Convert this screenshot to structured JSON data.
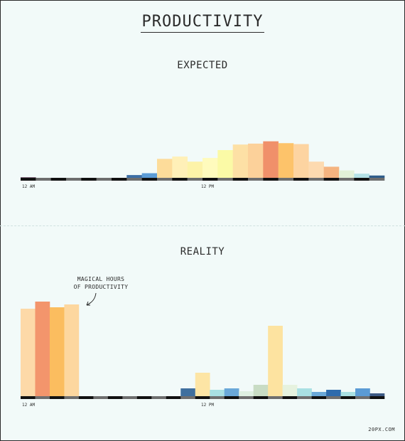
{
  "title": "PRODUCTIVITY",
  "credit": "20PX.COM",
  "chart_data": [
    {
      "type": "bar",
      "title": "EXPECTED",
      "xlabel": "",
      "ylabel": "",
      "x_tick_labels": [
        "12 AM",
        "12 PM"
      ],
      "ylim": [
        0,
        80
      ],
      "values": [
        1,
        0,
        0,
        0,
        0,
        0,
        0,
        6,
        10,
        41,
        46,
        35,
        43,
        60,
        72,
        74,
        79,
        75,
        73,
        35,
        24,
        16,
        9,
        5
      ],
      "colors": [
        "#4a1f3d",
        "#f2faf9",
        "#f2faf9",
        "#f2faf9",
        "#f2faf9",
        "#f2faf9",
        "#f2faf9",
        "#3c6ea5",
        "#5b9bd5",
        "#fddc9a",
        "#fff0b8",
        "#fdf3a8",
        "#fffbbd",
        "#fbfaa6",
        "#fde0a5",
        "#fcd19a",
        "#f0906a",
        "#fdc36a",
        "#fdd4a1",
        "#fddab0",
        "#f5b480",
        "#e2f1d8",
        "#b4e1e6",
        "#2f5d8a"
      ]
    },
    {
      "type": "bar",
      "title": "REALITY",
      "xlabel": "",
      "ylabel": "",
      "x_tick_labels": [
        "12 AM",
        "12 PM"
      ],
      "ylim": [
        0,
        150
      ],
      "values": [
        123,
        133,
        125,
        129,
        0,
        0,
        0,
        0,
        0,
        0,
        0,
        11,
        33,
        9,
        11,
        7,
        16,
        99,
        16,
        11,
        6,
        9,
        6,
        11,
        4
      ],
      "colors": [
        "#fdd9a8",
        "#f3956c",
        "#fbbd5f",
        "#fdd79f",
        "#f2faf9",
        "#f2faf9",
        "#f2faf9",
        "#f2faf9",
        "#f2faf9",
        "#f2faf9",
        "#f2faf9",
        "#3f6f9e",
        "#fde5a5",
        "#a9e0e3",
        "#6aa8d8",
        "#dff0e2",
        "#c8dcc4",
        "#fde3a0",
        "#e6f2df",
        "#a9e0e3",
        "#6aa8d8",
        "#2e6bac",
        "#a9e0e3",
        "#5b9bd5",
        "#3d5a84"
      ],
      "annotation": [
        "MAGICAL HOURS",
        "OF PRODUCTIVITY"
      ]
    }
  ]
}
